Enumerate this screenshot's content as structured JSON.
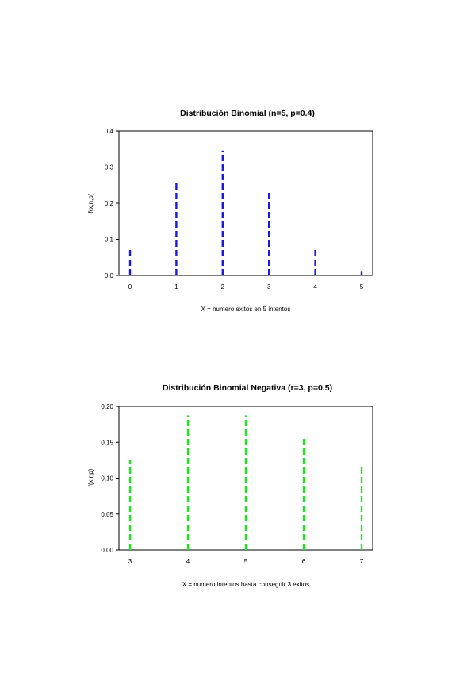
{
  "chart_data": [
    {
      "type": "bar",
      "title": "Distribución Binomial (n=5, p=0.4)",
      "xlabel": "X = numero exitos en 5 intentos",
      "ylabel": "f(x,n,p)",
      "x": [
        0,
        1,
        2,
        3,
        4,
        5
      ],
      "values": [
        0.07776,
        0.2592,
        0.3456,
        0.2304,
        0.0768,
        0.01024
      ],
      "xlim": [
        0,
        5
      ],
      "ylim": [
        0,
        0.4
      ],
      "yticks": [
        0.0,
        0.1,
        0.2,
        0.3,
        0.4
      ],
      "ytick_labels": [
        "0.0",
        "0.1",
        "0.2",
        "0.3",
        "0.4"
      ],
      "xtick_labels": [
        "0",
        "1",
        "2",
        "3",
        "4",
        "5"
      ],
      "color": "#1a1adf",
      "line_style": "dashed",
      "grid": false
    },
    {
      "type": "bar",
      "title": "Distribución Binomial Negativa (r=3, p=0.5)",
      "xlabel": "X = numero intentos hasta conseguir 3 exitos",
      "ylabel": "f(x,r,p)",
      "x": [
        3,
        4,
        5,
        6,
        7
      ],
      "values": [
        0.125,
        0.1875,
        0.1875,
        0.15625,
        0.1171875
      ],
      "xlim": [
        3,
        7
      ],
      "ylim": [
        0,
        0.2
      ],
      "yticks": [
        0.0,
        0.05,
        0.1,
        0.15,
        0.2
      ],
      "ytick_labels": [
        "0.00",
        "0.05",
        "0.10",
        "0.15",
        "0.20"
      ],
      "xtick_labels": [
        "3",
        "4",
        "5",
        "6",
        "7"
      ],
      "color": "#1ee61e",
      "line_style": "dashed",
      "grid": false
    }
  ]
}
